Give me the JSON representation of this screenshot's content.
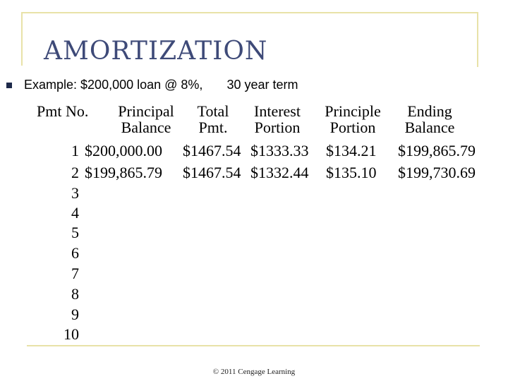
{
  "slide": {
    "title": "AMORTIZATION",
    "example": {
      "text_a": "Example: $200,000 loan @ 8%,",
      "text_b": "30 year term"
    },
    "table": {
      "headers": {
        "pmt_no": "Pmt No.",
        "principal_balance": [
          "Principal",
          "Balance"
        ],
        "total_pmt": [
          "Total",
          "Pmt."
        ],
        "interest_portion": [
          "Interest",
          "Portion"
        ],
        "principle_portion": [
          "Principle",
          "Portion"
        ],
        "ending_balance": [
          "Ending",
          "Balance"
        ]
      },
      "payment_numbers": [
        "1",
        "2",
        "3",
        "4",
        "5",
        "6",
        "7",
        "8",
        "9",
        "10"
      ],
      "rows": [
        [
          "$200,000.00",
          "$1467.54",
          "$1333.33",
          "$134.21",
          "$199,865.79"
        ],
        [
          "$199,865.79",
          "$1467.54",
          "$1332.44",
          "$135.10",
          "$199,730.69"
        ]
      ]
    },
    "footer": "© 2011 Cengage Learning"
  }
}
